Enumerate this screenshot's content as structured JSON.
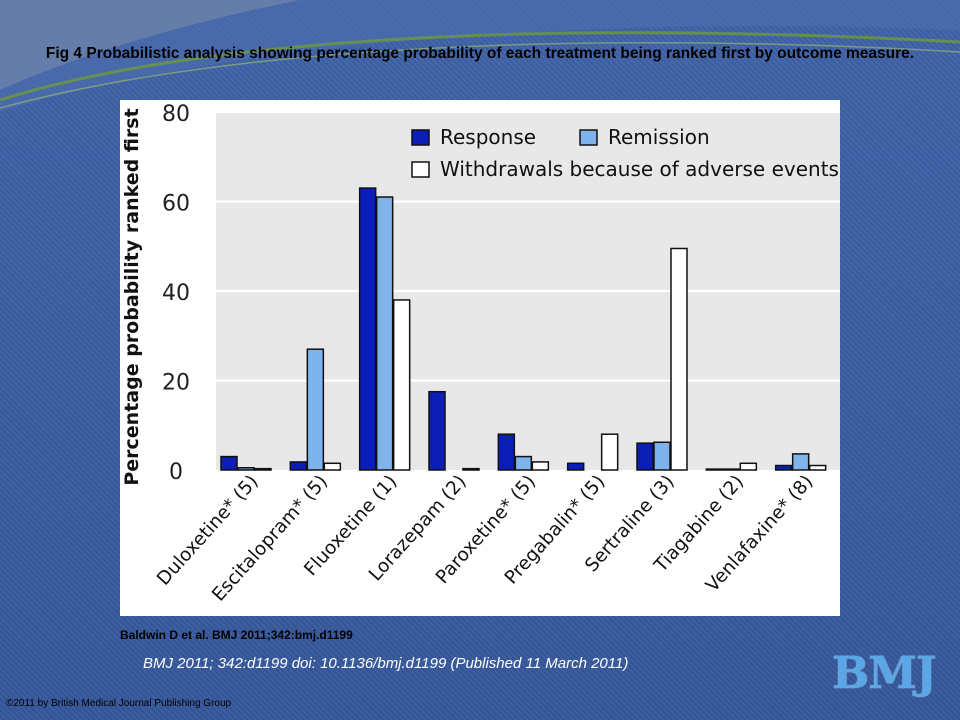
{
  "slide": {
    "title": "Fig 4 Probabilistic analysis showing percentage probability of each treatment being ranked first by outcome measure.",
    "citation_short": "Baldwin D et al. BMJ 2011;342:bmj.d1199",
    "citation_full": "BMJ 2011; 342:d1199 doi: 10.1136/bmj.d1199 (Published 11 March 2011)",
    "copyright": "©2011 by British Medical Journal Publishing Group",
    "logo_text": "BMJ"
  },
  "colors": {
    "response": "#0b1fb8",
    "remission": "#7fb3ec",
    "withdrawals": "#ffffff",
    "plot_bg": "#e8e8e8",
    "grid": "#ffffff"
  },
  "chart_data": {
    "type": "bar",
    "title": "",
    "xlabel": "",
    "ylabel": "Percentage probability ranked first",
    "ylim": [
      0,
      80
    ],
    "yticks": [
      0,
      20,
      40,
      60,
      80
    ],
    "grid": true,
    "legend_position": "top-right",
    "categories": [
      "Duloxetine* (5)",
      "Escitalopram* (5)",
      "Fluoxetine (1)",
      "Lorazepam (2)",
      "Paroxetine* (5)",
      "Pregabalin* (5)",
      "Sertraline (3)",
      "Tiagabine (2)",
      "Venlafaxine* (8)"
    ],
    "series": [
      {
        "name": "Response",
        "values": [
          3,
          1.8,
          63,
          17.5,
          8,
          1.5,
          6,
          0.2,
          1
        ]
      },
      {
        "name": "Remission",
        "values": [
          0.5,
          27,
          61,
          null,
          3,
          null,
          6.2,
          0.2,
          3.6
        ]
      },
      {
        "name": "Withdrawals because of adverse events",
        "values": [
          0.3,
          1.5,
          38,
          0.3,
          1.8,
          8,
          49.5,
          1.5,
          1
        ]
      }
    ]
  }
}
